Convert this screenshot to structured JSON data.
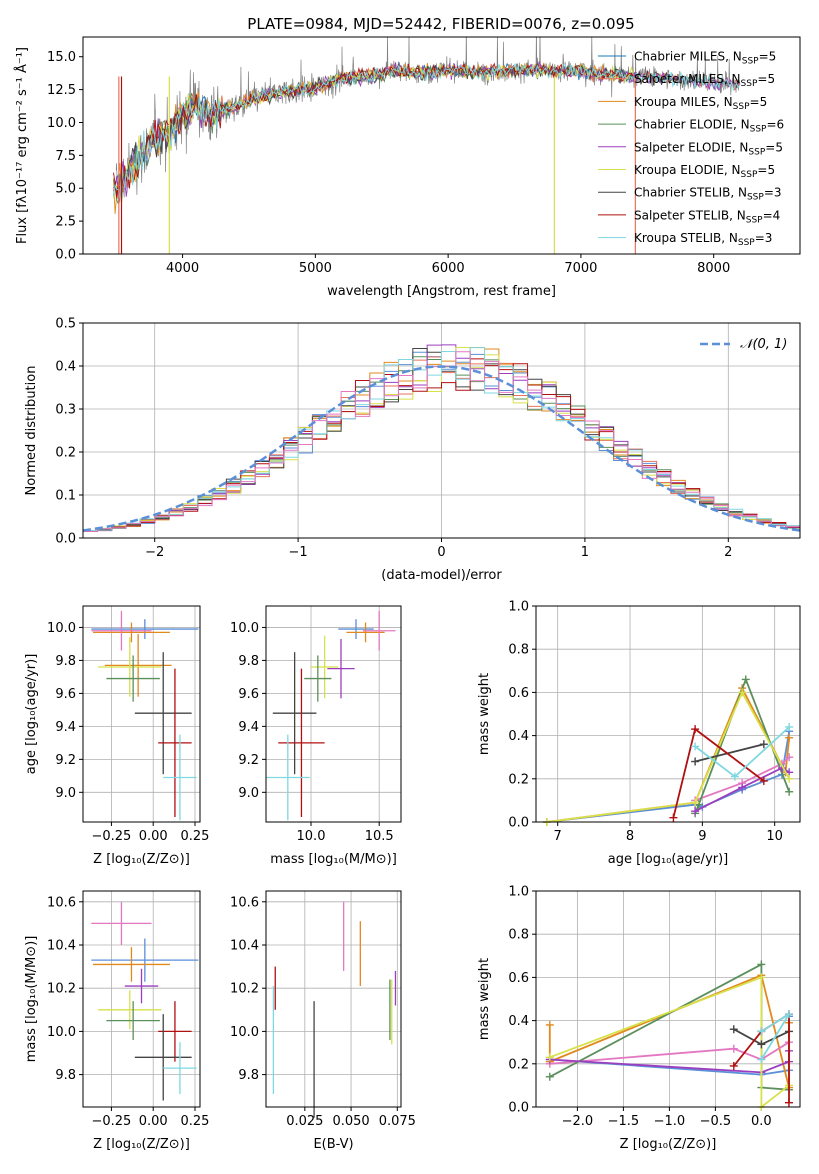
{
  "chart_data": [
    {
      "id": "spectrum",
      "type": "line",
      "title": "PLATE=0984, MJD=52442, FIBERID=0076, z=0.095",
      "xlabel": "wavelength [Angstrom, rest frame]",
      "ylabel": "Flux [fλ10⁻¹⁷ erg cm⁻² s⁻¹ Å⁻¹]",
      "xlim": [
        3250,
        8650
      ],
      "ylim": [
        0,
        16.5
      ],
      "x_ticks": [
        "4000",
        "5000",
        "6000",
        "7000",
        "8000"
      ],
      "x_tick_values": [
        4000,
        5000,
        6000,
        7000,
        8000
      ],
      "y_ticks": [
        "0.0",
        "2.5",
        "5.0",
        "7.5",
        "10.0",
        "12.5",
        "15.0"
      ],
      "y_tick_values": [
        0,
        2.5,
        5,
        7.5,
        10,
        12.5,
        15
      ],
      "legend_position": "top-right",
      "data_spectrum": {
        "x": [
          3500,
          3600,
          3700,
          3800,
          3900,
          4000,
          4100,
          4200,
          4300,
          4400,
          4600,
          4800,
          5000,
          5200,
          5400,
          5600,
          5800,
          6000,
          6200,
          6400,
          6600,
          6800,
          7000,
          7200,
          7400,
          7600,
          7800,
          8000,
          8200
        ],
        "y": [
          5.0,
          6.3,
          7.7,
          8.8,
          9.2,
          10.5,
          11.3,
          10.4,
          11.0,
          11.2,
          12.0,
          12.4,
          12.6,
          13.4,
          13.5,
          14.0,
          13.7,
          14.0,
          13.8,
          13.9,
          14.0,
          13.9,
          13.9,
          13.6,
          13.5,
          13.5,
          13.2,
          13.0,
          12.9
        ]
      },
      "series": [
        {
          "name": "Chabrier MILES, N_SSP=5",
          "label": "Chabrier MILES, N",
          "sub": "SSP",
          "suffix": "=5",
          "color": "#1f77b4"
        },
        {
          "name": "Salpeter MILES, N_SSP=5",
          "label": "Salpeter MILES, N",
          "sub": "SSP",
          "suffix": "=5",
          "color": "#e9735b"
        },
        {
          "name": "Kroupa MILES, N_SSP=5",
          "label": "Kroupa MILES, N",
          "sub": "SSP",
          "suffix": "=5",
          "color": "#e08a1e"
        },
        {
          "name": "Chabrier ELODIE, N_SSP=6",
          "label": "Chabrier ELODIE, N",
          "sub": "SSP",
          "suffix": "=6",
          "color": "#5b8f5b"
        },
        {
          "name": "Salpeter ELODIE, N_SSP=5",
          "label": "Salpeter ELODIE, N",
          "sub": "SSP",
          "suffix": "=5",
          "color": "#9b3fbf"
        },
        {
          "name": "Kroupa ELODIE, N_SSP=5",
          "label": "Kroupa ELODIE, N",
          "sub": "SSP",
          "suffix": "=5",
          "color": "#d8e04a"
        },
        {
          "name": "Chabrier STELIB, N_SSP=3",
          "label": "Chabrier STELIB, N",
          "sub": "SSP",
          "suffix": "=3",
          "color": "#444444"
        },
        {
          "name": "Salpeter STELIB, N_SSP=4",
          "label": "Salpeter STELIB, N",
          "sub": "SSP",
          "suffix": "=4",
          "color": "#b01010"
        },
        {
          "name": "Kroupa STELIB, N_SSP=3",
          "label": "Kroupa STELIB, N",
          "sub": "SSP",
          "suffix": "=3",
          "color": "#7fd8e0"
        }
      ]
    },
    {
      "id": "residuals",
      "type": "histogram",
      "xlabel": "(data-model)/error",
      "ylabel": "Normed distribution",
      "xlim": [
        -2.5,
        2.5
      ],
      "ylim": [
        0,
        0.5
      ],
      "x_ticks": [
        "−2",
        "−1",
        "0",
        "1",
        "2"
      ],
      "x_tick_values": [
        -2,
        -1,
        0,
        1,
        2
      ],
      "y_ticks": [
        "0.0",
        "0.1",
        "0.2",
        "0.3",
        "0.4",
        "0.5"
      ],
      "y_tick_values": [
        0,
        0.1,
        0.2,
        0.3,
        0.4,
        0.5
      ],
      "legend": "𝒩(0, 1)",
      "legend_position": "top-right",
      "gaussian": {
        "mean": 0,
        "sigma": 1,
        "color": "#5b8fd8"
      },
      "bin_width": 0.1
    },
    {
      "id": "age-vs-z",
      "type": "errorbar",
      "xlabel": "Z [log₁₀(Z/Z⊙)]",
      "ylabel": "age  [log₁₀(age/yr)]",
      "xlim": [
        -0.42,
        0.28
      ],
      "ylim": [
        8.82,
        10.13
      ],
      "x_ticks": [
        "−0.25",
        "0.00",
        "0.25"
      ],
      "x_tick_values": [
        -0.25,
        0,
        0.25
      ],
      "y_ticks": [
        "9.0",
        "9.2",
        "9.4",
        "9.6",
        "9.8",
        "10.0"
      ],
      "y_tick_values": [
        9.0,
        9.2,
        9.4,
        9.6,
        9.8,
        10.0
      ],
      "points": [
        {
          "x": -0.05,
          "y": 9.99,
          "xerr": 0.32,
          "yerr": 0.06,
          "color": "#5b8fd8"
        },
        {
          "x": -0.13,
          "y": 9.97,
          "xerr": 0.23,
          "yerr": 0.06,
          "color": "#e08a1e"
        },
        {
          "x": -0.09,
          "y": 9.77,
          "xerr": 0.2,
          "yerr": 0.19,
          "color": "#e08a1e"
        },
        {
          "x": -0.19,
          "y": 9.98,
          "xerr": 0.18,
          "yerr": 0.12,
          "color": "#e377c2"
        },
        {
          "x": -0.14,
          "y": 9.76,
          "xerr": 0.19,
          "yerr": 0.18,
          "color": "#d8e04a"
        },
        {
          "x": -0.12,
          "y": 9.69,
          "xerr": 0.16,
          "yerr": 0.14,
          "color": "#5b8f5b"
        },
        {
          "x": 0.06,
          "y": 9.48,
          "xerr": 0.17,
          "yerr": 0.37,
          "color": "#444444"
        },
        {
          "x": 0.13,
          "y": 9.3,
          "xerr": 0.1,
          "yerr": 0.45,
          "color": "#b01010"
        },
        {
          "x": 0.16,
          "y": 9.09,
          "xerr": 0.1,
          "yerr": 0.26,
          "color": "#7fd8e0"
        }
      ]
    },
    {
      "id": "age-vs-mass",
      "type": "errorbar",
      "xlabel": "mass [log₁₀(M/M⊙)]",
      "ylabel": "",
      "xlim": [
        9.67,
        10.66
      ],
      "ylim": [
        8.82,
        10.13
      ],
      "x_ticks": [
        "10.0",
        "10.5"
      ],
      "x_tick_values": [
        10.0,
        10.5
      ],
      "y_ticks": [
        "9.0",
        "9.2",
        "9.4",
        "9.6",
        "9.8",
        "10.0"
      ],
      "y_tick_values": [
        9.0,
        9.2,
        9.4,
        9.6,
        9.8,
        10.0
      ],
      "points": [
        {
          "x": 10.33,
          "y": 9.99,
          "xerr": 0.13,
          "yerr": 0.06,
          "color": "#5b8fd8"
        },
        {
          "x": 10.4,
          "y": 9.97,
          "xerr": 0.14,
          "yerr": 0.06,
          "color": "#e08a1e"
        },
        {
          "x": 10.5,
          "y": 9.98,
          "xerr": 0.12,
          "yerr": 0.12,
          "color": "#e377c2"
        },
        {
          "x": 10.22,
          "y": 9.75,
          "xerr": 0.1,
          "yerr": 0.18,
          "color": "#9b3fbf"
        },
        {
          "x": 10.1,
          "y": 9.76,
          "xerr": 0.1,
          "yerr": 0.19,
          "color": "#d8e04a"
        },
        {
          "x": 10.05,
          "y": 9.69,
          "xerr": 0.1,
          "yerr": 0.14,
          "color": "#5b8f5b"
        },
        {
          "x": 9.88,
          "y": 9.48,
          "xerr": 0.16,
          "yerr": 0.37,
          "color": "#444444"
        },
        {
          "x": 9.93,
          "y": 9.3,
          "xerr": 0.17,
          "yerr": 0.45,
          "color": "#b01010"
        },
        {
          "x": 9.83,
          "y": 9.09,
          "xerr": 0.16,
          "yerr": 0.26,
          "color": "#7fd8e0"
        }
      ]
    },
    {
      "id": "mass-weight-vs-age",
      "type": "line",
      "xlabel": "age  [log₁₀(age/yr)]",
      "ylabel": "mass weight",
      "xlim": [
        6.7,
        10.35
      ],
      "ylim": [
        0,
        1
      ],
      "x_ticks": [
        "7",
        "8",
        "9",
        "10"
      ],
      "x_tick_values": [
        7,
        8,
        9,
        10
      ],
      "y_ticks": [
        "0.0",
        "0.2",
        "0.4",
        "0.6",
        "0.8",
        "1.0"
      ],
      "y_tick_values": [
        0,
        0.2,
        0.4,
        0.6,
        0.8,
        1.0
      ],
      "series": [
        {
          "color": "#5b8fd8",
          "x": [
            6.85,
            8.9,
            9.0,
            9.55,
            10.1,
            10.2
          ],
          "y": [
            0.0,
            0.08,
            0.07,
            0.15,
            0.22,
            0.42
          ]
        },
        {
          "color": "#e08a1e",
          "x": [
            6.85,
            8.9,
            9.55,
            10.15,
            10.2
          ],
          "y": [
            0.0,
            0.09,
            0.62,
            0.23,
            0.39
          ]
        },
        {
          "color": "#e377c2",
          "x": [
            8.9,
            9.55,
            10.1,
            10.2
          ],
          "y": [
            0.1,
            0.18,
            0.27,
            0.3
          ]
        },
        {
          "color": "#5b8f5b",
          "x": [
            8.9,
            8.95,
            9.6,
            10.2
          ],
          "y": [
            0.04,
            0.08,
            0.66,
            0.14
          ]
        },
        {
          "color": "#9b3fbf",
          "x": [
            8.9,
            9.55,
            10.1,
            10.2
          ],
          "y": [
            0.05,
            0.16,
            0.25,
            0.23
          ]
        },
        {
          "color": "#d8e04a",
          "x": [
            6.85,
            8.9,
            9.55,
            10.2
          ],
          "y": [
            0.0,
            0.09,
            0.6,
            0.2
          ]
        },
        {
          "color": "#444444",
          "x": [
            8.9,
            9.85
          ],
          "y": [
            0.28,
            0.36
          ]
        },
        {
          "color": "#b01010",
          "x": [
            8.6,
            8.9,
            9.85
          ],
          "y": [
            0.02,
            0.43,
            0.19
          ]
        },
        {
          "color": "#7fd8e0",
          "x": [
            8.9,
            9.45,
            10.2
          ],
          "y": [
            0.35,
            0.21,
            0.44
          ]
        }
      ]
    },
    {
      "id": "mass-vs-z",
      "type": "errorbar",
      "xlabel": "Z [log₁₀(Z/Z⊙)]",
      "ylabel": "mass [log₁₀(M/M⊙)]",
      "xlim": [
        -0.42,
        0.28
      ],
      "ylim": [
        9.65,
        10.65
      ],
      "x_ticks": [
        "−0.25",
        "0.00",
        "0.25"
      ],
      "x_tick_values": [
        -0.25,
        0,
        0.25
      ],
      "y_ticks": [
        "9.8",
        "10.0",
        "10.2",
        "10.4",
        "10.6"
      ],
      "y_tick_values": [
        9.8,
        10.0,
        10.2,
        10.4,
        10.6
      ],
      "points": [
        {
          "x": -0.19,
          "y": 10.5,
          "xerr": 0.18,
          "yerr": 0.1,
          "color": "#e377c2"
        },
        {
          "x": -0.05,
          "y": 10.33,
          "xerr": 0.32,
          "yerr": 0.1,
          "color": "#5b8fd8"
        },
        {
          "x": -0.13,
          "y": 10.31,
          "xerr": 0.23,
          "yerr": 0.08,
          "color": "#e08a1e"
        },
        {
          "x": -0.07,
          "y": 10.21,
          "xerr": 0.1,
          "yerr": 0.08,
          "color": "#9b3fbf"
        },
        {
          "x": -0.14,
          "y": 10.1,
          "xerr": 0.19,
          "yerr": 0.09,
          "color": "#d8e04a"
        },
        {
          "x": -0.12,
          "y": 10.05,
          "xerr": 0.16,
          "yerr": 0.09,
          "color": "#5b8f5b"
        },
        {
          "x": 0.13,
          "y": 10.0,
          "xerr": 0.1,
          "yerr": 0.14,
          "color": "#b01010"
        },
        {
          "x": 0.06,
          "y": 9.88,
          "xerr": 0.17,
          "yerr": 0.2,
          "color": "#444444"
        },
        {
          "x": 0.16,
          "y": 9.83,
          "xerr": 0.1,
          "yerr": 0.12,
          "color": "#7fd8e0"
        }
      ]
    },
    {
      "id": "mass-vs-ebv",
      "type": "errorbar",
      "xlabel": "E(B-V)",
      "ylabel": "",
      "xlim": [
        0.004,
        0.077
      ],
      "ylim": [
        9.65,
        10.65
      ],
      "x_ticks": [
        "0.025",
        "0.050",
        "0.075"
      ],
      "x_tick_values": [
        0.025,
        0.05,
        0.075
      ],
      "y_ticks": [
        "9.8",
        "10.0",
        "10.2",
        "10.4",
        "10.6"
      ],
      "y_tick_values": [
        9.8,
        10.0,
        10.2,
        10.4,
        10.6
      ],
      "points": [
        {
          "x": 0.046,
          "y": 10.44,
          "xerr": 0,
          "yerr": 0.16,
          "color": "#e377c2"
        },
        {
          "x": 0.055,
          "y": 10.36,
          "xerr": 0,
          "yerr": 0.15,
          "color": "#e08a1e"
        },
        {
          "x": 0.074,
          "y": 10.2,
          "xerr": 0,
          "yerr": 0.08,
          "color": "#9b3fbf"
        },
        {
          "x": 0.072,
          "y": 10.09,
          "xerr": 0,
          "yerr": 0.15,
          "color": "#d8e04a"
        },
        {
          "x": 0.071,
          "y": 10.1,
          "xerr": 0,
          "yerr": 0.14,
          "color": "#5b8f5b"
        },
        {
          "x": 0.009,
          "y": 10.2,
          "xerr": 0,
          "yerr": 0.1,
          "color": "#b01010"
        },
        {
          "x": 0.03,
          "y": 9.87,
          "xerr": 0,
          "yerr": 0.27,
          "color": "#444444"
        },
        {
          "x": 0.008,
          "y": 9.96,
          "xerr": 0,
          "yerr": 0.25,
          "color": "#7fd8e0"
        }
      ]
    },
    {
      "id": "mass-weight-vs-z",
      "type": "line",
      "xlabel": "Z [log₁₀(Z/Z⊙)]",
      "ylabel": "mass weight",
      "xlim": [
        -2.45,
        0.42
      ],
      "ylim": [
        0,
        1
      ],
      "x_ticks": [
        "−2.0",
        "−1.5",
        "−1.0",
        "−0.5",
        "0.0"
      ],
      "x_tick_values": [
        -2,
        -1.5,
        -1,
        -0.5,
        0
      ],
      "y_ticks": [
        "0.0",
        "0.2",
        "0.4",
        "0.6",
        "0.8",
        "1.0"
      ],
      "y_tick_values": [
        0,
        0.2,
        0.4,
        0.6,
        0.8,
        1.0
      ],
      "series": [
        {
          "color": "#5b8fd8",
          "x": [
            -2.3,
            0.0,
            0.3,
            0.3
          ],
          "y": [
            0.22,
            0.15,
            0.17,
            0.42
          ]
        },
        {
          "color": "#e08a1e",
          "x": [
            -2.3,
            -2.3,
            0.0,
            0.3,
            0.3
          ],
          "y": [
            0.38,
            0.21,
            0.61,
            0.09,
            0.39
          ]
        },
        {
          "color": "#e377c2",
          "x": [
            -2.3,
            -0.3,
            0.0,
            0.3
          ],
          "y": [
            0.2,
            0.27,
            0.22,
            0.3
          ]
        },
        {
          "color": "#5b8f5b",
          "x": [
            -2.3,
            0.0,
            0.0,
            0.3
          ],
          "y": [
            0.14,
            0.66,
            0.09,
            0.08
          ]
        },
        {
          "color": "#9b3fbf",
          "x": [
            -2.3,
            0.0,
            0.3,
            0.3
          ],
          "y": [
            0.22,
            0.16,
            0.21,
            0.26
          ]
        },
        {
          "color": "#d8e04a",
          "x": [
            -2.3,
            0.0,
            0.0,
            0.3
          ],
          "y": [
            0.23,
            0.6,
            0.0,
            0.1
          ]
        },
        {
          "color": "#444444",
          "x": [
            -0.3,
            0.0,
            0.3
          ],
          "y": [
            0.36,
            0.29,
            0.35
          ]
        },
        {
          "color": "#b01010",
          "x": [
            -0.3,
            0.0,
            0.3,
            0.3
          ],
          "y": [
            0.19,
            0.35,
            0.43,
            0.02
          ]
        },
        {
          "color": "#7fd8e0",
          "x": [
            0.0,
            0.3,
            0.0
          ],
          "y": [
            0.35,
            0.43,
            0.22
          ]
        }
      ]
    }
  ]
}
